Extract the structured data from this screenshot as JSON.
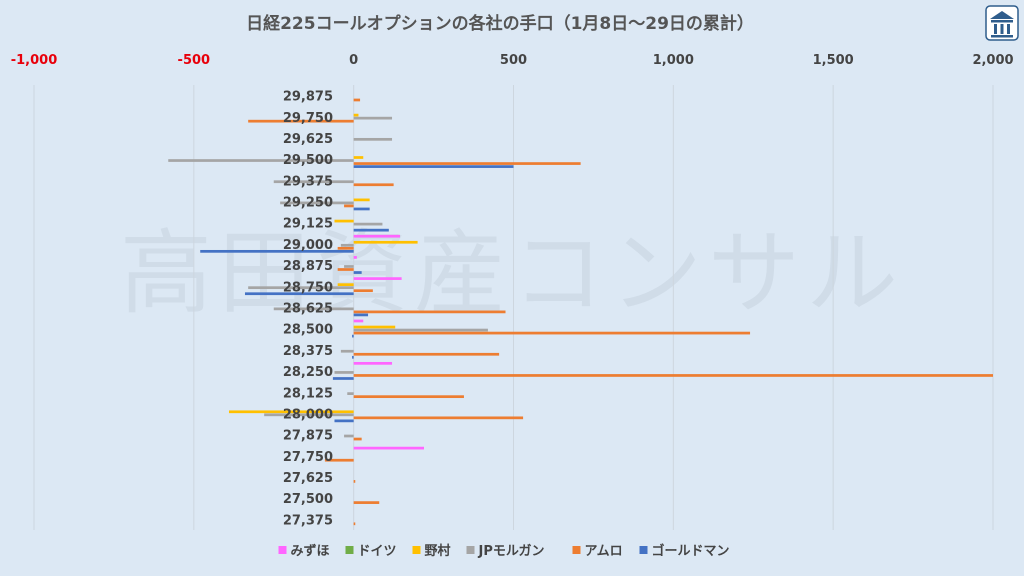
{
  "chart_data": {
    "type": "bar",
    "orientation": "horizontal",
    "title": "日経225コールオプションの各社の手口（1月8日～29日の累計）",
    "watermark": "高田資産コンサル",
    "logo_icon": "building-logo-icon",
    "xlim": [
      -1000,
      2000
    ],
    "xticks": [
      -1000,
      -500,
      0,
      500,
      1000,
      1500,
      2000
    ],
    "xtick_labels": [
      "-1,000",
      "-500",
      "0",
      "500",
      "1,000",
      "1,500",
      "2,000"
    ],
    "negative_tick_color": "#e8000b",
    "grid": true,
    "legend_position": "bottom",
    "categories": [
      "29,875",
      "29,750",
      "29,625",
      "29,500",
      "29,375",
      "29,250",
      "29,125",
      "29,000",
      "28,875",
      "28,750",
      "28,625",
      "28,500",
      "28,375",
      "28,250",
      "28,125",
      "28,000",
      "27,875",
      "27,750",
      "27,625",
      "27,500",
      "27,375"
    ],
    "series": [
      {
        "name": "みずほ",
        "color": "#ff66ff",
        "values": [
          0,
          0,
          0,
          0,
          0,
          0,
          0,
          145,
          10,
          150,
          0,
          30,
          0,
          120,
          0,
          0,
          0,
          220,
          0,
          0,
          0
        ]
      },
      {
        "name": "ドイツ",
        "color": "#70ad47",
        "values": [
          0,
          0,
          0,
          0,
          0,
          0,
          0,
          0,
          0,
          0,
          0,
          0,
          0,
          0,
          0,
          0,
          0,
          0,
          0,
          0,
          0
        ]
      },
      {
        "name": "野村",
        "color": "#ffc000",
        "values": [
          0,
          15,
          0,
          30,
          0,
          50,
          -60,
          200,
          0,
          -50,
          0,
          130,
          0,
          0,
          0,
          -390,
          0,
          0,
          0,
          0,
          0
        ]
      },
      {
        "name": "JPモルガン",
        "color": "#a5a5a5",
        "values": [
          0,
          120,
          120,
          -580,
          -250,
          -230,
          90,
          -40,
          -30,
          -330,
          -250,
          420,
          -40,
          -60,
          -20,
          -280,
          -30,
          0,
          0,
          0,
          0
        ]
      },
      {
        "name": "アムロ",
        "color": "#ed7d31",
        "values": [
          20,
          -330,
          0,
          710,
          125,
          -30,
          0,
          -50,
          -50,
          60,
          475,
          1240,
          455,
          2000,
          345,
          530,
          25,
          -90,
          5,
          80,
          5
        ]
      },
      {
        "name": "ゴールドマン",
        "color": "#4472c4",
        "values": [
          0,
          0,
          0,
          500,
          0,
          50,
          110,
          -480,
          25,
          -340,
          45,
          -5,
          -5,
          -65,
          0,
          -60,
          0,
          0,
          0,
          0,
          0
        ]
      }
    ]
  }
}
